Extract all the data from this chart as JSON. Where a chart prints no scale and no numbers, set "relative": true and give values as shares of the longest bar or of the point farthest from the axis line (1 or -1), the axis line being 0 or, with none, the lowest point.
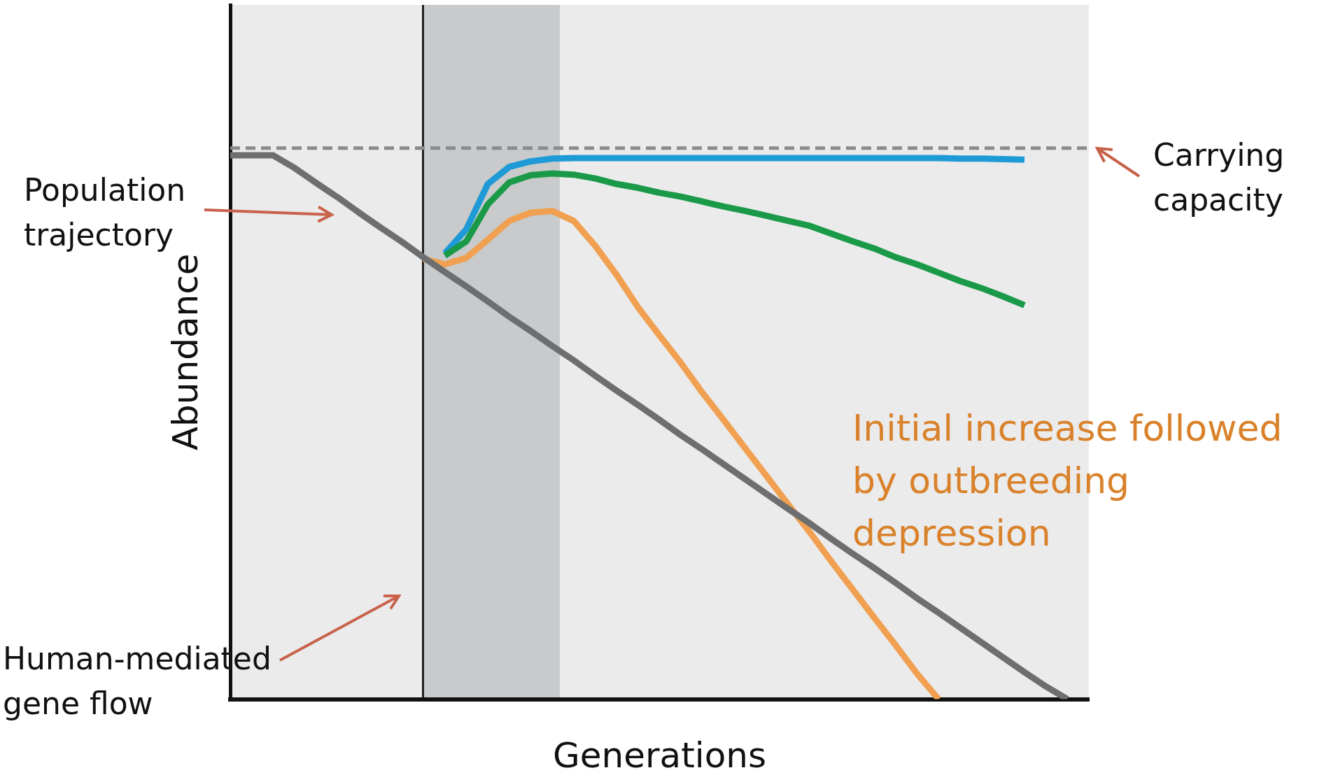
{
  "chart_data": {
    "type": "line",
    "relative": true,
    "xlabel": "Generations",
    "ylabel": "Abundance",
    "legend": false,
    "marker": "none",
    "categories": [
      null,
      null,
      null,
      null,
      null,
      null,
      null,
      null,
      null,
      null,
      null,
      null,
      null,
      null,
      null,
      null,
      null,
      null,
      null,
      null,
      null,
      null,
      null,
      null,
      null,
      null,
      null,
      null,
      null,
      null,
      null,
      null,
      null,
      null,
      null,
      null,
      null,
      null,
      null,
      null,
      null
    ],
    "series": [
      {
        "color": "#8a8b8d",
        "line_style": "dashed",
        "values": [
          1,
          1,
          1,
          1,
          1,
          1,
          1,
          1,
          1,
          1,
          1,
          1,
          1,
          1,
          1,
          1,
          1,
          1,
          1,
          1,
          1,
          1,
          1,
          1,
          1,
          1,
          1,
          1,
          1,
          1,
          1,
          1,
          1,
          1,
          1,
          1,
          1,
          1,
          1,
          1,
          1
        ]
      },
      {
        "color": "#6d6e70",
        "values": [
          0.987,
          0.987,
          0.987,
          0.964,
          0.937,
          0.911,
          0.883,
          0.856,
          0.83,
          0.802,
          0.775,
          0.749,
          0.722,
          0.694,
          0.668,
          0.641,
          0.615,
          0.587,
          0.56,
          0.534,
          0.507,
          0.479,
          0.453,
          0.426,
          0.399,
          0.372,
          0.345,
          0.319,
          0.291,
          0.264,
          0.238,
          0.211,
          0.183,
          0.157,
          0.13,
          0.103,
          0.076,
          0.049,
          0.023,
          0,
          null
        ]
      },
      {
        "color": "#f0a050",
        "values": [
          null,
          null,
          null,
          null,
          null,
          null,
          null,
          null,
          null,
          0.799,
          0.789,
          0.801,
          0.834,
          0.868,
          0.883,
          0.886,
          0.868,
          0.823,
          0.77,
          0.711,
          0.66,
          0.61,
          0.556,
          0.506,
          0.455,
          0.404,
          0.353,
          0.303,
          0.25,
          0.199,
          0.148,
          0.098,
          0.046,
          0,
          null,
          null,
          null,
          null,
          null,
          null,
          null
        ]
      },
      {
        "color": "#1a9a48",
        "values": [
          null,
          null,
          null,
          null,
          null,
          null,
          null,
          null,
          null,
          null,
          0.805,
          0.831,
          0.898,
          0.938,
          0.951,
          0.954,
          0.952,
          0.945,
          0.935,
          0.928,
          0.919,
          0.912,
          0.903,
          0.894,
          0.886,
          0.877,
          0.868,
          0.859,
          0.845,
          0.831,
          0.818,
          0.802,
          0.789,
          0.774,
          0.759,
          0.746,
          0.731,
          0.715,
          null,
          null,
          null
        ]
      },
      {
        "color": "#1e9ad6",
        "values": [
          null,
          null,
          null,
          null,
          null,
          null,
          null,
          null,
          null,
          null,
          0.809,
          0.853,
          0.935,
          0.966,
          0.976,
          0.981,
          0.982,
          0.982,
          0.982,
          0.982,
          0.982,
          0.982,
          0.982,
          0.982,
          0.982,
          0.982,
          0.982,
          0.982,
          0.982,
          0.982,
          0.982,
          0.982,
          0.982,
          0.982,
          0.981,
          0.981,
          0.98,
          0.979,
          null,
          null,
          null
        ]
      }
    ],
    "annotations": [
      "Population trajectory",
      "Carrying capacity",
      "Human-mediated gene flow",
      "Initial increase followed by outbreeding depression"
    ]
  }
}
